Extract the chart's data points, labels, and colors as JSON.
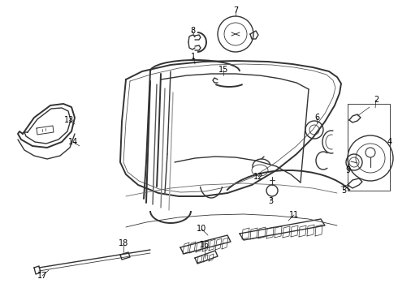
{
  "background_color": "#ffffff",
  "line_color": "#333333",
  "label_color": "#000000",
  "fig_width": 4.9,
  "fig_height": 3.6,
  "dpi": 100,
  "lw_main": 1.0,
  "lw_thin": 0.6,
  "lw_thick": 1.4
}
